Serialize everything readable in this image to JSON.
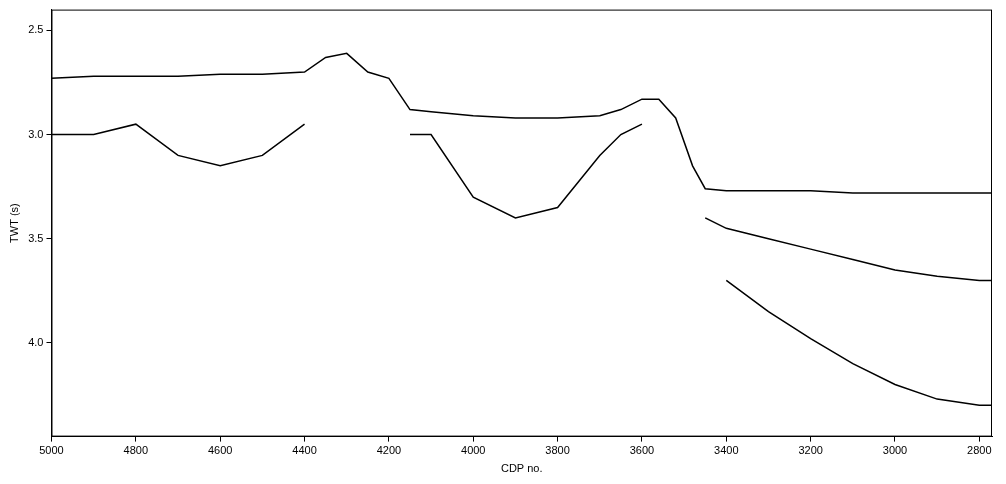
{
  "chart_data": {
    "type": "line",
    "x_label": "CDP no.",
    "y_label": "TWT (s)",
    "x": [
      5000,
      4900,
      4800,
      4700,
      4600,
      4500,
      4400,
      4350,
      4300,
      4250,
      4200,
      4150,
      4100,
      4000,
      3900,
      3800,
      3700,
      3650,
      3600,
      3560,
      3520,
      3480,
      3450,
      3400,
      3300,
      3200,
      3100,
      3000,
      2900,
      2800,
      2770
    ],
    "series": [
      {
        "color": "#000000",
        "line_style": "solid",
        "values": [
          2.73,
          2.72,
          2.72,
          2.72,
          2.71,
          2.71,
          2.7,
          2.63,
          2.61,
          2.7,
          2.73,
          2.88,
          2.89,
          2.91,
          2.92,
          2.92,
          2.91,
          2.88,
          2.83,
          2.83,
          2.92,
          3.15,
          3.26,
          3.27,
          3.27,
          3.27,
          3.28,
          3.28,
          3.28,
          3.28,
          3.28
        ]
      },
      {
        "color": "#000000",
        "line_style": "solid",
        "values": [
          3.0,
          3.0,
          2.95,
          3.1,
          3.15,
          3.1,
          2.95,
          null,
          null,
          null,
          null,
          3.0,
          3.0,
          3.3,
          3.4,
          3.35,
          3.1,
          3.0,
          2.95,
          null,
          null,
          null,
          null,
          null,
          null,
          null,
          null,
          null,
          null,
          null,
          null
        ]
      },
      {
        "color": "#000000",
        "line_style": "solid",
        "values": [
          null,
          null,
          null,
          null,
          null,
          null,
          null,
          null,
          null,
          null,
          null,
          null,
          null,
          null,
          null,
          null,
          null,
          null,
          null,
          null,
          null,
          null,
          3.4,
          3.45,
          3.5,
          3.55,
          3.6,
          3.65,
          3.68,
          3.7,
          3.7
        ]
      },
      {
        "color": "#000000",
        "line_style": "solid",
        "values": [
          null,
          null,
          null,
          null,
          null,
          null,
          null,
          null,
          null,
          null,
          null,
          null,
          null,
          null,
          null,
          null,
          null,
          null,
          null,
          null,
          null,
          null,
          null,
          3.7,
          3.85,
          3.98,
          4.1,
          4.2,
          4.27,
          4.3,
          4.3
        ]
      }
    ],
    "xlim": [
      5000,
      2770
    ],
    "ylim": [
      2.4,
      4.45
    ],
    "xticks": [
      5000,
      4800,
      4600,
      4400,
      4200,
      4000,
      3800,
      3600,
      3400,
      3200,
      3000,
      2800
    ],
    "yticks": [
      2.5,
      {
        "value": 3,
        "label": "3.0"
      },
      3.5,
      {
        "value": 4,
        "label": "4.0"
      }
    ],
    "grid": false
  }
}
